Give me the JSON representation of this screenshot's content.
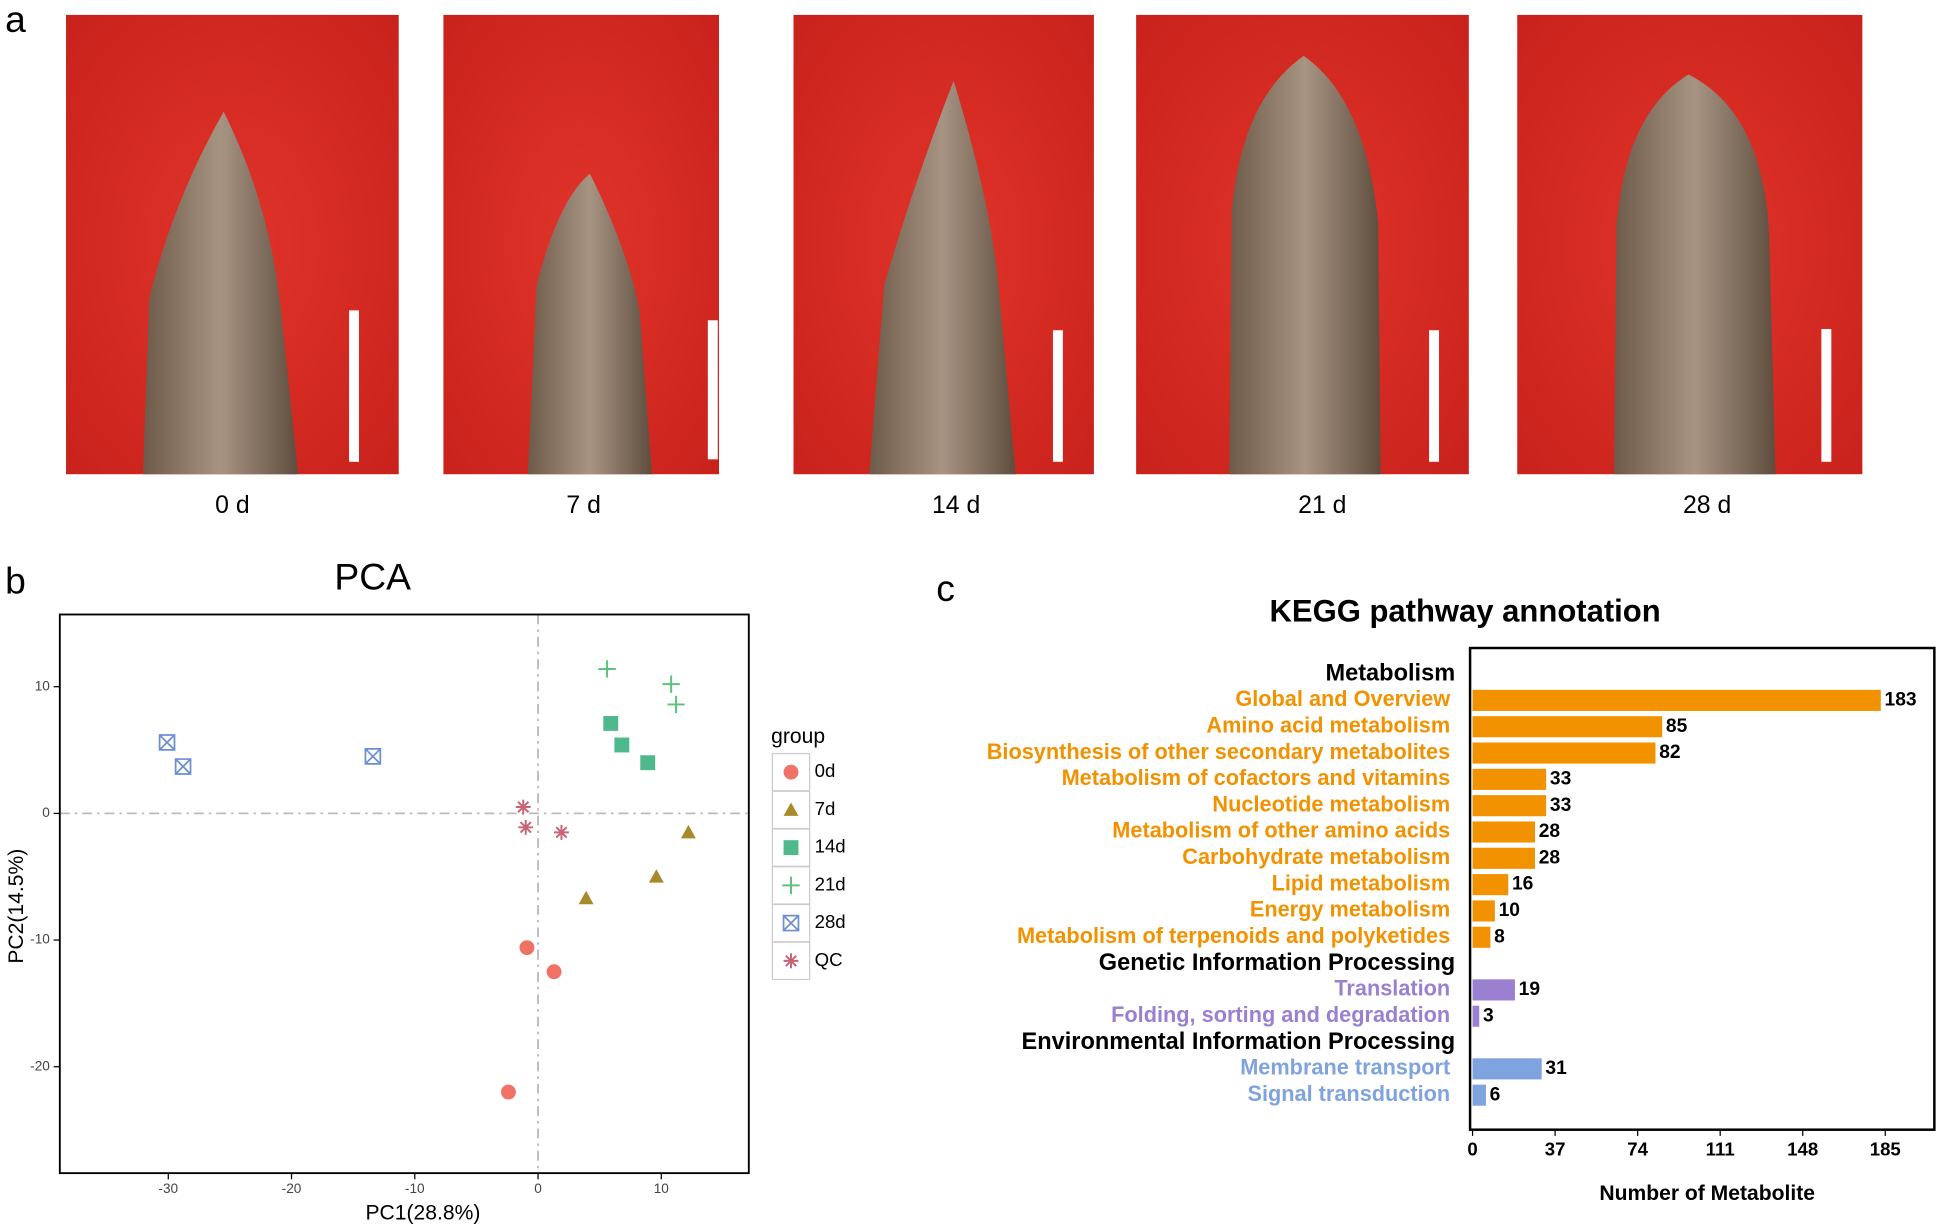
{
  "panel_labels": [
    "a",
    "b",
    "c"
  ],
  "photos": {
    "labels": [
      "0 d",
      "7 d",
      "14 d",
      "21 d",
      "28 d"
    ]
  },
  "chart_data": [
    {
      "type": "scatter",
      "title": "PCA",
      "x_label": "PC1(28.8%)",
      "y_label": "PC2(14.5%)",
      "xlim": [
        -38.8,
        17.1
      ],
      "ylim": [
        -28.4,
        15.7
      ],
      "xticks": [
        -30,
        -20,
        -10,
        0,
        10
      ],
      "yticks": [
        -20,
        -10,
        0,
        10
      ],
      "zero_lines": true,
      "legend_title": "group",
      "series": [
        {
          "name": "0d",
          "color": "#f07166",
          "marker": "circle",
          "x": [
            -0.9,
            1.3,
            -2.4
          ],
          "y": [
            -10.6,
            -12.5,
            -22.0
          ]
        },
        {
          "name": "7d",
          "color": "#a8892b",
          "marker": "triangle",
          "x": [
            12.2,
            9.6,
            3.9
          ],
          "y": [
            -1.5,
            -5.0,
            -6.7
          ]
        },
        {
          "name": "14d",
          "color": "#4fb88c",
          "marker": "square",
          "x": [
            5.9,
            6.8,
            8.9
          ],
          "y": [
            7.1,
            5.4,
            4.0
          ]
        },
        {
          "name": "21d",
          "color": "#5cc47a",
          "marker": "plus",
          "x": [
            5.6,
            10.8,
            11.2
          ],
          "y": [
            11.4,
            10.2,
            8.6
          ]
        },
        {
          "name": "28d",
          "color": "#6c8fcf",
          "marker": "boxx",
          "x": [
            -30.1,
            -28.8,
            -13.4
          ],
          "y": [
            5.6,
            3.7,
            4.5
          ]
        },
        {
          "name": "QC",
          "color": "#c86475",
          "marker": "asterisk",
          "x": [
            -1.2,
            -1.0,
            1.9
          ],
          "y": [
            0.5,
            -1.1,
            -1.5
          ]
        }
      ]
    },
    {
      "type": "barh",
      "title": "KEGG pathway annotation",
      "x_label": "Number of Metabolite",
      "xlim": [
        0,
        207
      ],
      "xticks": [
        0,
        37,
        74,
        111,
        148,
        185
      ],
      "series": [
        {
          "name": "Metabolism",
          "color": "#f39200",
          "categories": [
            "Global and Overview",
            "Amino acid metabolism",
            "Biosynthesis of other secondary metabolites",
            "Metabolism of cofactors and vitamins",
            "Nucleotide metabolism",
            "Metabolism of other amino acids",
            "Carbohydrate metabolism",
            "Lipid metabolism",
            "Energy metabolism",
            "Metabolism of terpenoids and polyketides"
          ],
          "values": [
            183,
            85,
            82,
            33,
            33,
            28,
            28,
            16,
            10,
            8
          ]
        },
        {
          "name": "Genetic Information Processing",
          "color": "#9b7fd0",
          "categories": [
            "Translation",
            "Folding, sorting and degradation"
          ],
          "values": [
            19,
            3
          ]
        },
        {
          "name": "Environmental Information Processing",
          "color": "#7fa3de",
          "categories": [
            "Membrane transport",
            "Signal transduction"
          ],
          "values": [
            31,
            6
          ]
        }
      ]
    }
  ]
}
